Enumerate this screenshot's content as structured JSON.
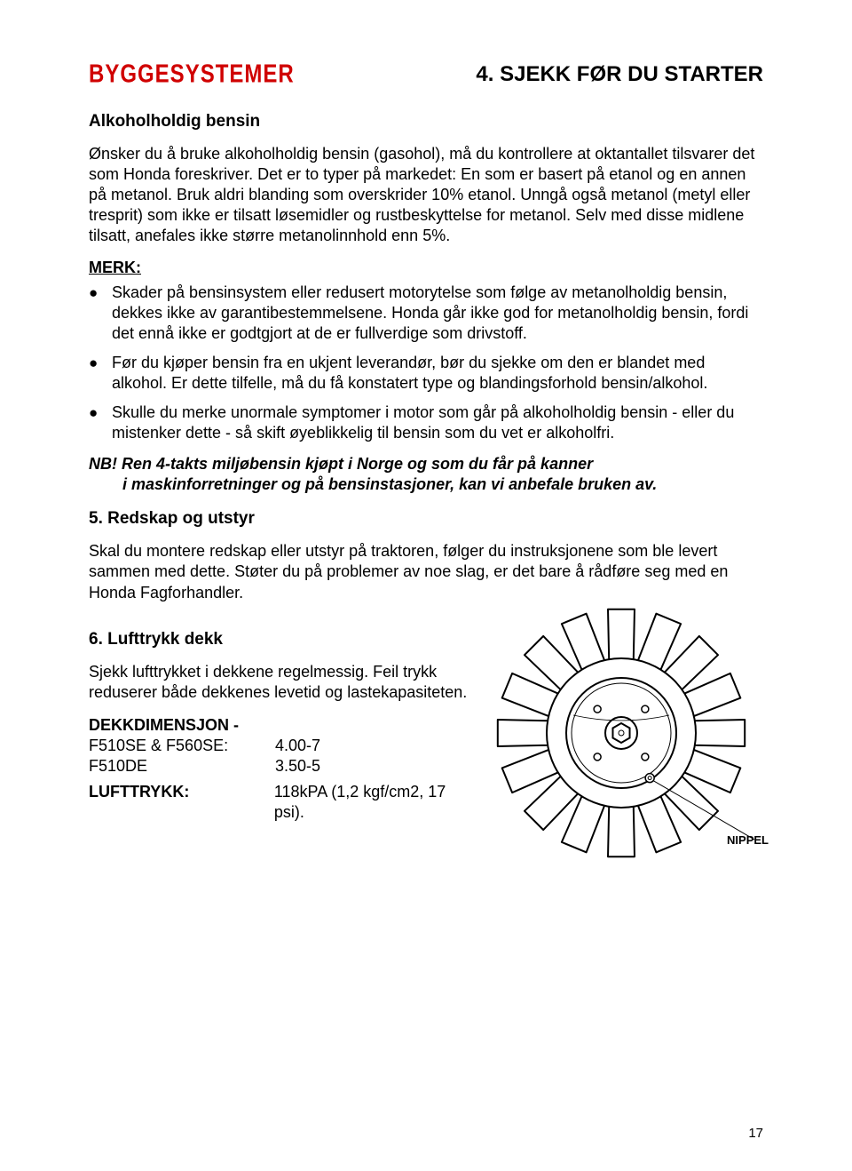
{
  "logo": "BYGGESYSTEMER",
  "chapterTitle": "4. SJEKK FØR DU STARTER",
  "section_alcohol": {
    "heading": "Alkoholholdig bensin",
    "p1": "Ønsker du å bruke alkoholholdig bensin (gasohol), må du kontrollere at oktantallet tilsvarer det som Honda foreskriver. Det er to typer på markedet: En som er basert på etanol og en annen på metanol. Bruk aldri blanding som overskrider 10% etanol. Unngå også metanol (metyl eller tresprit) som ikke er tilsatt løsemidler og rustbeskyttelse for metanol. Selv med disse midlene tilsatt, anefales ikke større metanolinnhold enn 5%."
  },
  "merk_label": "MERK:",
  "bullets": [
    "Skader på bensinsystem eller redusert motorytelse som følge av metanolholdig bensin, dekkes ikke av garantibestemmelsene. Honda går ikke god for metanolholdig bensin, fordi det ennå ikke er godtgjort at de er fullverdige som drivstoff.",
    "Før du kjøper bensin fra en ukjent leverandør, bør du sjekke om den er blandet med alkohol. Er dette tilfelle, må du få konstatert type og blandingsforhold bensin/alkohol.",
    "Skulle du merke unormale symptomer i motor som går på alkoholholdig bensin - eller du mistenker dette - så skift øyeblikkelig til bensin som du vet er alkoholfri."
  ],
  "nb": {
    "line1": "NB! Ren 4-takts miljøbensin kjøpt i Norge og som du får på kanner",
    "line2": "i maskinforretninger og på bensinstasjoner, kan vi anbefale bruken av."
  },
  "section5": {
    "heading": "5. Redskap og utstyr",
    "p": "Skal du montere redskap eller utstyr på traktoren, følger du instruksjonene som ble levert sammen med dette. Støter du på problemer av noe slag, er det bare å rådføre seg med en Honda Fagforhandler."
  },
  "section6": {
    "heading": "6. Lufttrykk dekk",
    "p": "Sjekk lufttrykket i dekkene regelmessig. Feil trykk reduserer både dekkenes levetid og lastekapasiteten.",
    "dim_label": "DEKKDIMENSJON -",
    "rows": [
      {
        "k": "F510SE & F560SE:",
        "v": "4.00-7"
      },
      {
        "k": "F510DE",
        "v": "3.50-5"
      }
    ],
    "pressure_label": "LUFTTRYKK:",
    "pressure_value": "118kPA (1,2 kgf/cm2, 17 psi)."
  },
  "tire_label": "NIPPEL",
  "page_number": "17",
  "tire_svg": {
    "stroke": "#000000",
    "strokeWidth": 2,
    "fill": "none",
    "outerR": 140,
    "innerR": 62,
    "hubR": 18,
    "rimR": 78,
    "lugCount": 16
  }
}
